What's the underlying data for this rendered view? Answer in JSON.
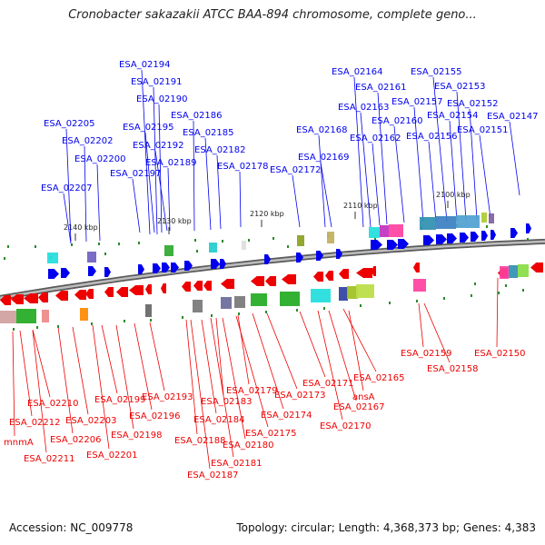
{
  "title": "Cronobacter sakazakii ATCC BAA-894 chromosome, complete geno...",
  "footer": {
    "accession": "Accession: NC_009778",
    "summary": "Topology: circular; Length: 4,368,373 bp; Genes: 4,383"
  },
  "colors": {
    "forward": "#0000ee",
    "reverse": "#ee0000",
    "backbone": "#808080",
    "marker": "#2a8a2a"
  },
  "scale_ticks": [
    "2140 kbp",
    "2130 kbp",
    "2120 kbp",
    "2110 kbp",
    "2100 kbp"
  ],
  "forward_genes": [
    "ESA_02194",
    "ESA_02191",
    "ESA_02190",
    "ESA_02205",
    "ESA_02195",
    "ESA_02186",
    "ESA_02202",
    "ESA_02192",
    "ESA_02185",
    "ESA_02200",
    "ESA_02182",
    "ESA_02189",
    "ESA_02197",
    "ESA_02178",
    "ESA_02207",
    "ESA_02164",
    "ESA_02155",
    "ESA_02161",
    "ESA_02153",
    "ESA_02157",
    "ESA_02163",
    "ESA_02152",
    "ESA_02154",
    "ESA_02147",
    "ESA_02160",
    "ESA_02168",
    "ESA_02156",
    "ESA_02151",
    "ESA_02162",
    "ESA_02169",
    "ESA_02172"
  ],
  "reverse_genes": [
    "ESA_02159",
    "ESA_02150",
    "ESA_02158",
    "ESA_02165",
    "ESA_02171",
    "ESA_02179",
    "ESA_02183",
    "ESA_02173",
    "ESA_02193",
    "ESA_02199",
    "ESA_02210",
    "ESA_02167",
    "ESA_02196",
    "ESA_02184",
    "ESA_02174",
    "ESA_02203",
    "ESA_02212",
    "ESA_02170",
    "ESA_02198",
    "ESA_02175",
    "ESA_02206",
    "ESA_02180",
    "ESA_02188",
    "ESA_02201",
    "ESA_02211",
    "ESA_02181",
    "ESA_02187",
    "ansA",
    "mnmA"
  ]
}
